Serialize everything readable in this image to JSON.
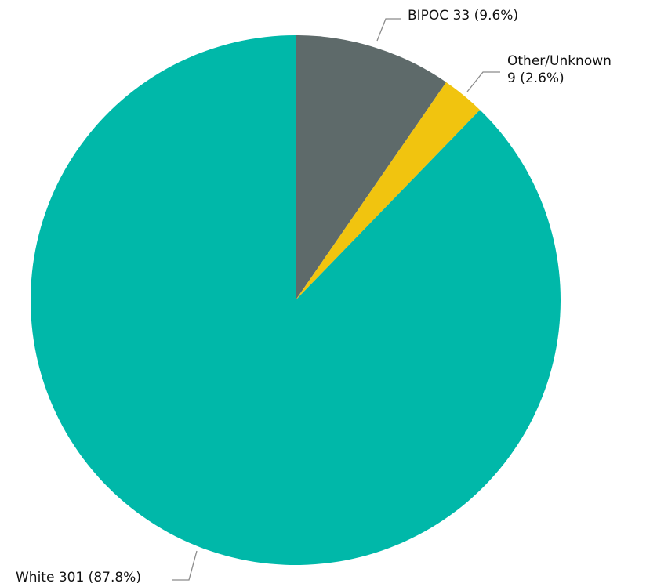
{
  "chart_data": {
    "type": "pie",
    "title": "",
    "slices": [
      {
        "name": "BIPOC",
        "value": 33,
        "percent": 9.6,
        "color": "#5e6a6a",
        "label_lines": [
          "BIPOC 33 (9.6%)"
        ]
      },
      {
        "name": "Other/Unknown",
        "value": 9,
        "percent": 2.6,
        "color": "#f1c40f",
        "label_lines": [
          "Other/Unknown",
          "9 (2.6%)"
        ]
      },
      {
        "name": "White",
        "value": 301,
        "percent": 87.8,
        "color": "#00b8a9",
        "label_lines": [
          "White 301 (87.8%)"
        ]
      }
    ],
    "start_angle": "12 o'clock",
    "direction": "clockwise",
    "legend": "none"
  }
}
